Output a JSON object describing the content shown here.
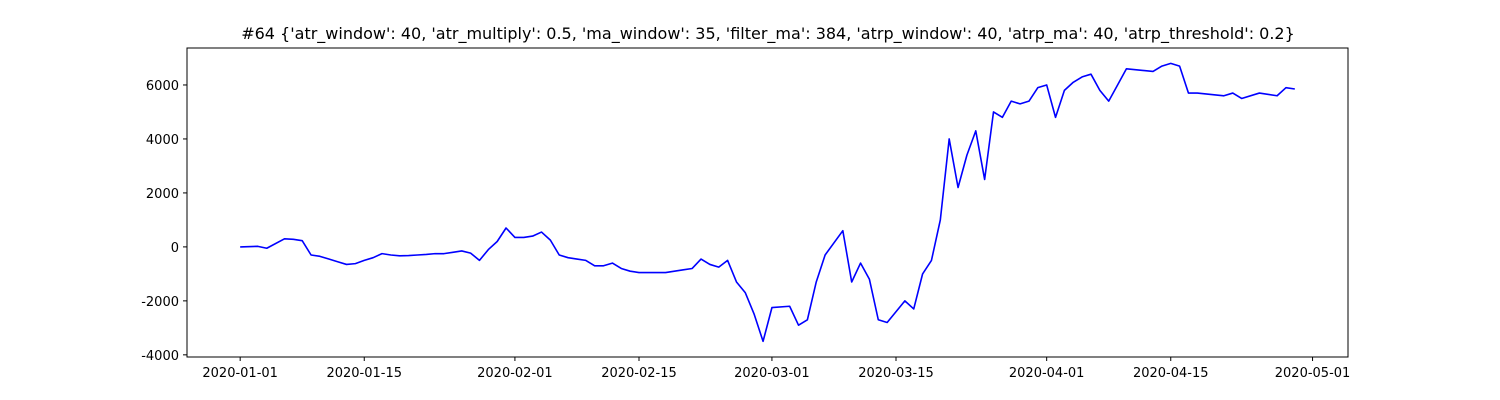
{
  "chart_data": {
    "type": "line",
    "title": "#64 {'atr_window': 40, 'atr_multiply': 0.5, 'ma_window': 35, 'filter_ma': 384, 'atrp_window': 40, 'atrp_ma': 40, 'atrp_threshold': 0.2}",
    "color": "#0000ff",
    "x": [
      "2020-01-01",
      "2020-01-03",
      "2020-01-04",
      "2020-01-06",
      "2020-01-07",
      "2020-01-08",
      "2020-01-09",
      "2020-01-10",
      "2020-01-11",
      "2020-01-12",
      "2020-01-13",
      "2020-01-14",
      "2020-01-15",
      "2020-01-16",
      "2020-01-17",
      "2020-01-18",
      "2020-01-19",
      "2020-01-20",
      "2020-01-21",
      "2020-01-22",
      "2020-01-23",
      "2020-01-24",
      "2020-01-25",
      "2020-01-26",
      "2020-01-27",
      "2020-01-28",
      "2020-01-29",
      "2020-01-30",
      "2020-01-31",
      "2020-02-01",
      "2020-02-02",
      "2020-02-03",
      "2020-02-04",
      "2020-02-05",
      "2020-02-06",
      "2020-02-07",
      "2020-02-08",
      "2020-02-09",
      "2020-02-10",
      "2020-02-11",
      "2020-02-12",
      "2020-02-13",
      "2020-02-14",
      "2020-02-15",
      "2020-02-18",
      "2020-02-20",
      "2020-02-21",
      "2020-02-22",
      "2020-02-23",
      "2020-02-24",
      "2020-02-25",
      "2020-02-26",
      "2020-02-27",
      "2020-02-28",
      "2020-02-29",
      "2020-03-01",
      "2020-03-03",
      "2020-03-04",
      "2020-03-05",
      "2020-03-06",
      "2020-03-07",
      "2020-03-09",
      "2020-03-10",
      "2020-03-11",
      "2020-03-12",
      "2020-03-13",
      "2020-03-14",
      "2020-03-16",
      "2020-03-17",
      "2020-03-18",
      "2020-03-19",
      "2020-03-20",
      "2020-03-21",
      "2020-03-22",
      "2020-03-23",
      "2020-03-24",
      "2020-03-25",
      "2020-03-26",
      "2020-03-27",
      "2020-03-28",
      "2020-03-29",
      "2020-03-30",
      "2020-03-31",
      "2020-04-01",
      "2020-04-02",
      "2020-04-03",
      "2020-04-04",
      "2020-04-05",
      "2020-04-06",
      "2020-04-07",
      "2020-04-08",
      "2020-04-09",
      "2020-04-10",
      "2020-04-13",
      "2020-04-14",
      "2020-04-15",
      "2020-04-16",
      "2020-04-17",
      "2020-04-18",
      "2020-04-21",
      "2020-04-22",
      "2020-04-23",
      "2020-04-25",
      "2020-04-27",
      "2020-04-28",
      "2020-04-29"
    ],
    "values": [
      0,
      20,
      -50,
      300,
      280,
      230,
      -300,
      -350,
      -450,
      -550,
      -650,
      -620,
      -500,
      -400,
      -250,
      -300,
      -330,
      -320,
      -300,
      -280,
      -250,
      -250,
      -200,
      -150,
      -230,
      -500,
      -100,
      200,
      700,
      350,
      350,
      400,
      550,
      250,
      -300,
      -400,
      -450,
      -500,
      -700,
      -700,
      -600,
      -800,
      -900,
      -950,
      -950,
      -850,
      -800,
      -450,
      -650,
      -750,
      -500,
      -1300,
      -1700,
      -2500,
      -3500,
      -2250,
      -2200,
      -2900,
      -2700,
      -1300,
      -300,
      600,
      -1300,
      -600,
      -1200,
      -2700,
      -2800,
      -2000,
      -2300,
      -1000,
      -500,
      1000,
      4000,
      2200,
      3400,
      4300,
      2500,
      5000,
      4800,
      5400,
      5300,
      5400,
      5900,
      6000,
      4800,
      5800,
      6100,
      6300,
      6400,
      5800,
      5400,
      6000,
      6600,
      6500,
      6700,
      6800,
      6700,
      5700,
      5700,
      5600,
      5700,
      5500,
      5700,
      5600,
      5900,
      5850
    ],
    "xlim": [
      "2019-12-26",
      "2020-05-05"
    ],
    "xticks": [
      "2020-01-01",
      "2020-01-15",
      "2020-02-01",
      "2020-02-15",
      "2020-03-01",
      "2020-03-15",
      "2020-04-01",
      "2020-04-15",
      "2020-05-01"
    ],
    "ylim": [
      -4080,
      7370
    ],
    "yticks": [
      -4000,
      -2000,
      0,
      2000,
      4000,
      6000
    ]
  }
}
